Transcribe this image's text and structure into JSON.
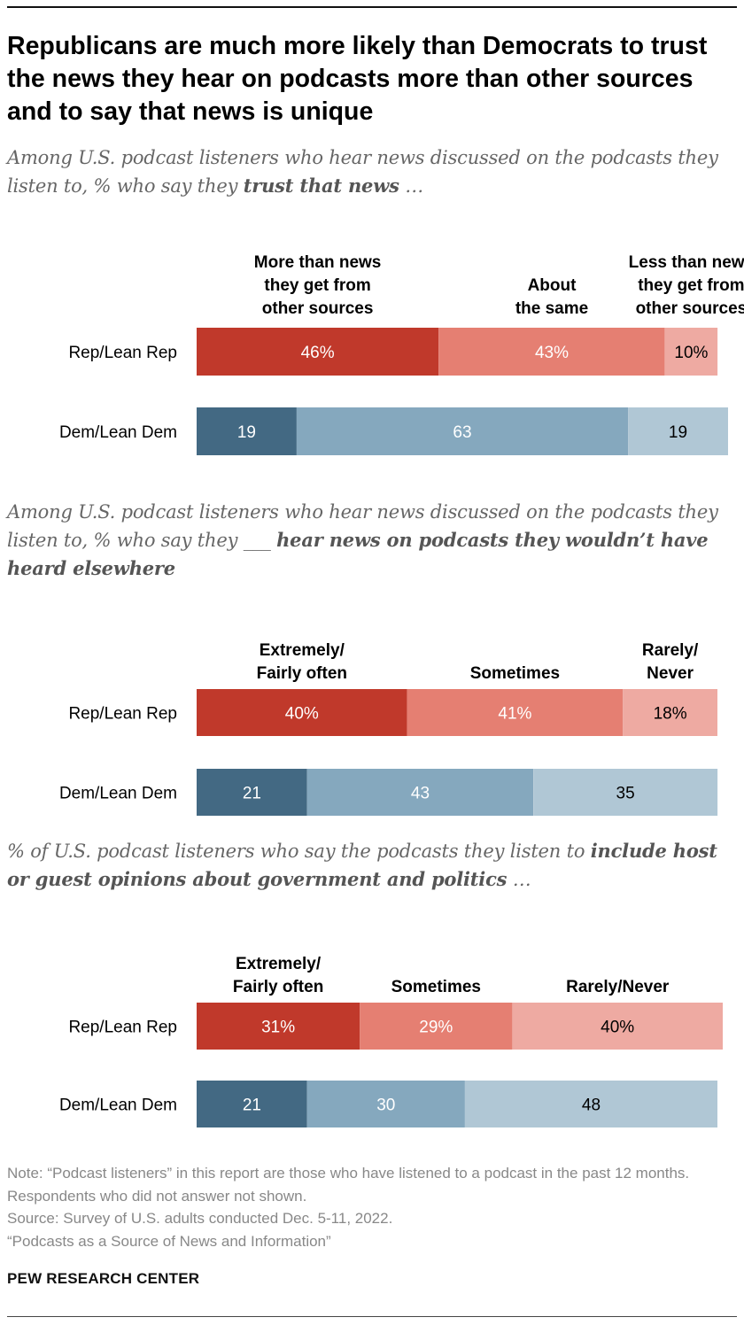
{
  "title": "Republicans are much more likely than Democrats to trust the news they hear on podcasts more than other sources and to say that news is unique",
  "colors": {
    "rep": [
      "#c0392b",
      "#e57f72",
      "#eeaaa2"
    ],
    "dem": [
      "#436983",
      "#85a8be",
      "#b0c7d5"
    ],
    "text_dark": "#ffffff",
    "text_light": "#000000",
    "label_color": "#000000"
  },
  "chart_data": [
    {
      "type": "bar",
      "orientation": "horizontal-stacked",
      "subtitle_lead": "Among U.S. podcast listeners who hear news discussed on the podcasts they listen to, % who say they ",
      "subtitle_emph": "trust that news",
      "subtitle_tail": " …",
      "categories": [
        "More than news they get from other sources",
        "About the same",
        "Less than news they get from other sources"
      ],
      "column_headers": [
        [
          "More than news",
          "they get from",
          "other sources"
        ],
        [
          "About",
          "the same"
        ],
        [
          "Less than news",
          "they get from",
          "other sources"
        ]
      ],
      "rows": [
        {
          "label": "Rep/Lean Rep",
          "values": [
            46,
            43,
            10
          ],
          "labels": [
            "46%",
            "43%",
            "10%"
          ]
        },
        {
          "label": "Dem/Lean Dem",
          "values": [
            19,
            63,
            19
          ],
          "labels": [
            "19",
            "63",
            "19"
          ]
        }
      ]
    },
    {
      "type": "bar",
      "orientation": "horizontal-stacked",
      "subtitle_lead": "Among U.S. podcast listeners who hear news discussed on the podcasts they listen to, % who say they ___ ",
      "subtitle_emph": "hear news on podcasts they wouldn’t have heard elsewhere",
      "subtitle_tail": "",
      "categories": [
        "Extremely/Fairly often",
        "Sometimes",
        "Rarely/Never"
      ],
      "column_headers": [
        [
          "Extremely/",
          "Fairly often"
        ],
        [
          "Sometimes"
        ],
        [
          "Rarely/",
          "Never"
        ]
      ],
      "rows": [
        {
          "label": "Rep/Lean Rep",
          "values": [
            40,
            41,
            18
          ],
          "labels": [
            "40%",
            "41%",
            "18%"
          ]
        },
        {
          "label": "Dem/Lean Dem",
          "values": [
            21,
            43,
            35
          ],
          "labels": [
            "21",
            "43",
            "35"
          ]
        }
      ]
    },
    {
      "type": "bar",
      "orientation": "horizontal-stacked",
      "subtitle_lead": "% of U.S. podcast listeners who say the podcasts they listen to ",
      "subtitle_emph": "include host or guest opinions about government and politics",
      "subtitle_tail": " …",
      "categories": [
        "Extremely/Fairly often",
        "Sometimes",
        "Rarely/Never"
      ],
      "column_headers": [
        [
          "Extremely/",
          "Fairly often"
        ],
        [
          "Sometimes"
        ],
        [
          "Rarely/Never"
        ]
      ],
      "rows": [
        {
          "label": "Rep/Lean Rep",
          "values": [
            31,
            29,
            40
          ],
          "labels": [
            "31%",
            "29%",
            "40%"
          ]
        },
        {
          "label": "Dem/Lean Dem",
          "values": [
            21,
            30,
            48
          ],
          "labels": [
            "21",
            "30",
            "48"
          ]
        }
      ]
    }
  ],
  "notes": [
    "Note: “Podcast listeners” in this report are those who have listened to a podcast in the past 12 months. Respondents who did not answer not shown.",
    "Source: Survey of U.S. adults conducted Dec. 5-11, 2022.",
    "“Podcasts as a Source of News and Information”"
  ],
  "brand": "PEW RESEARCH CENTER"
}
